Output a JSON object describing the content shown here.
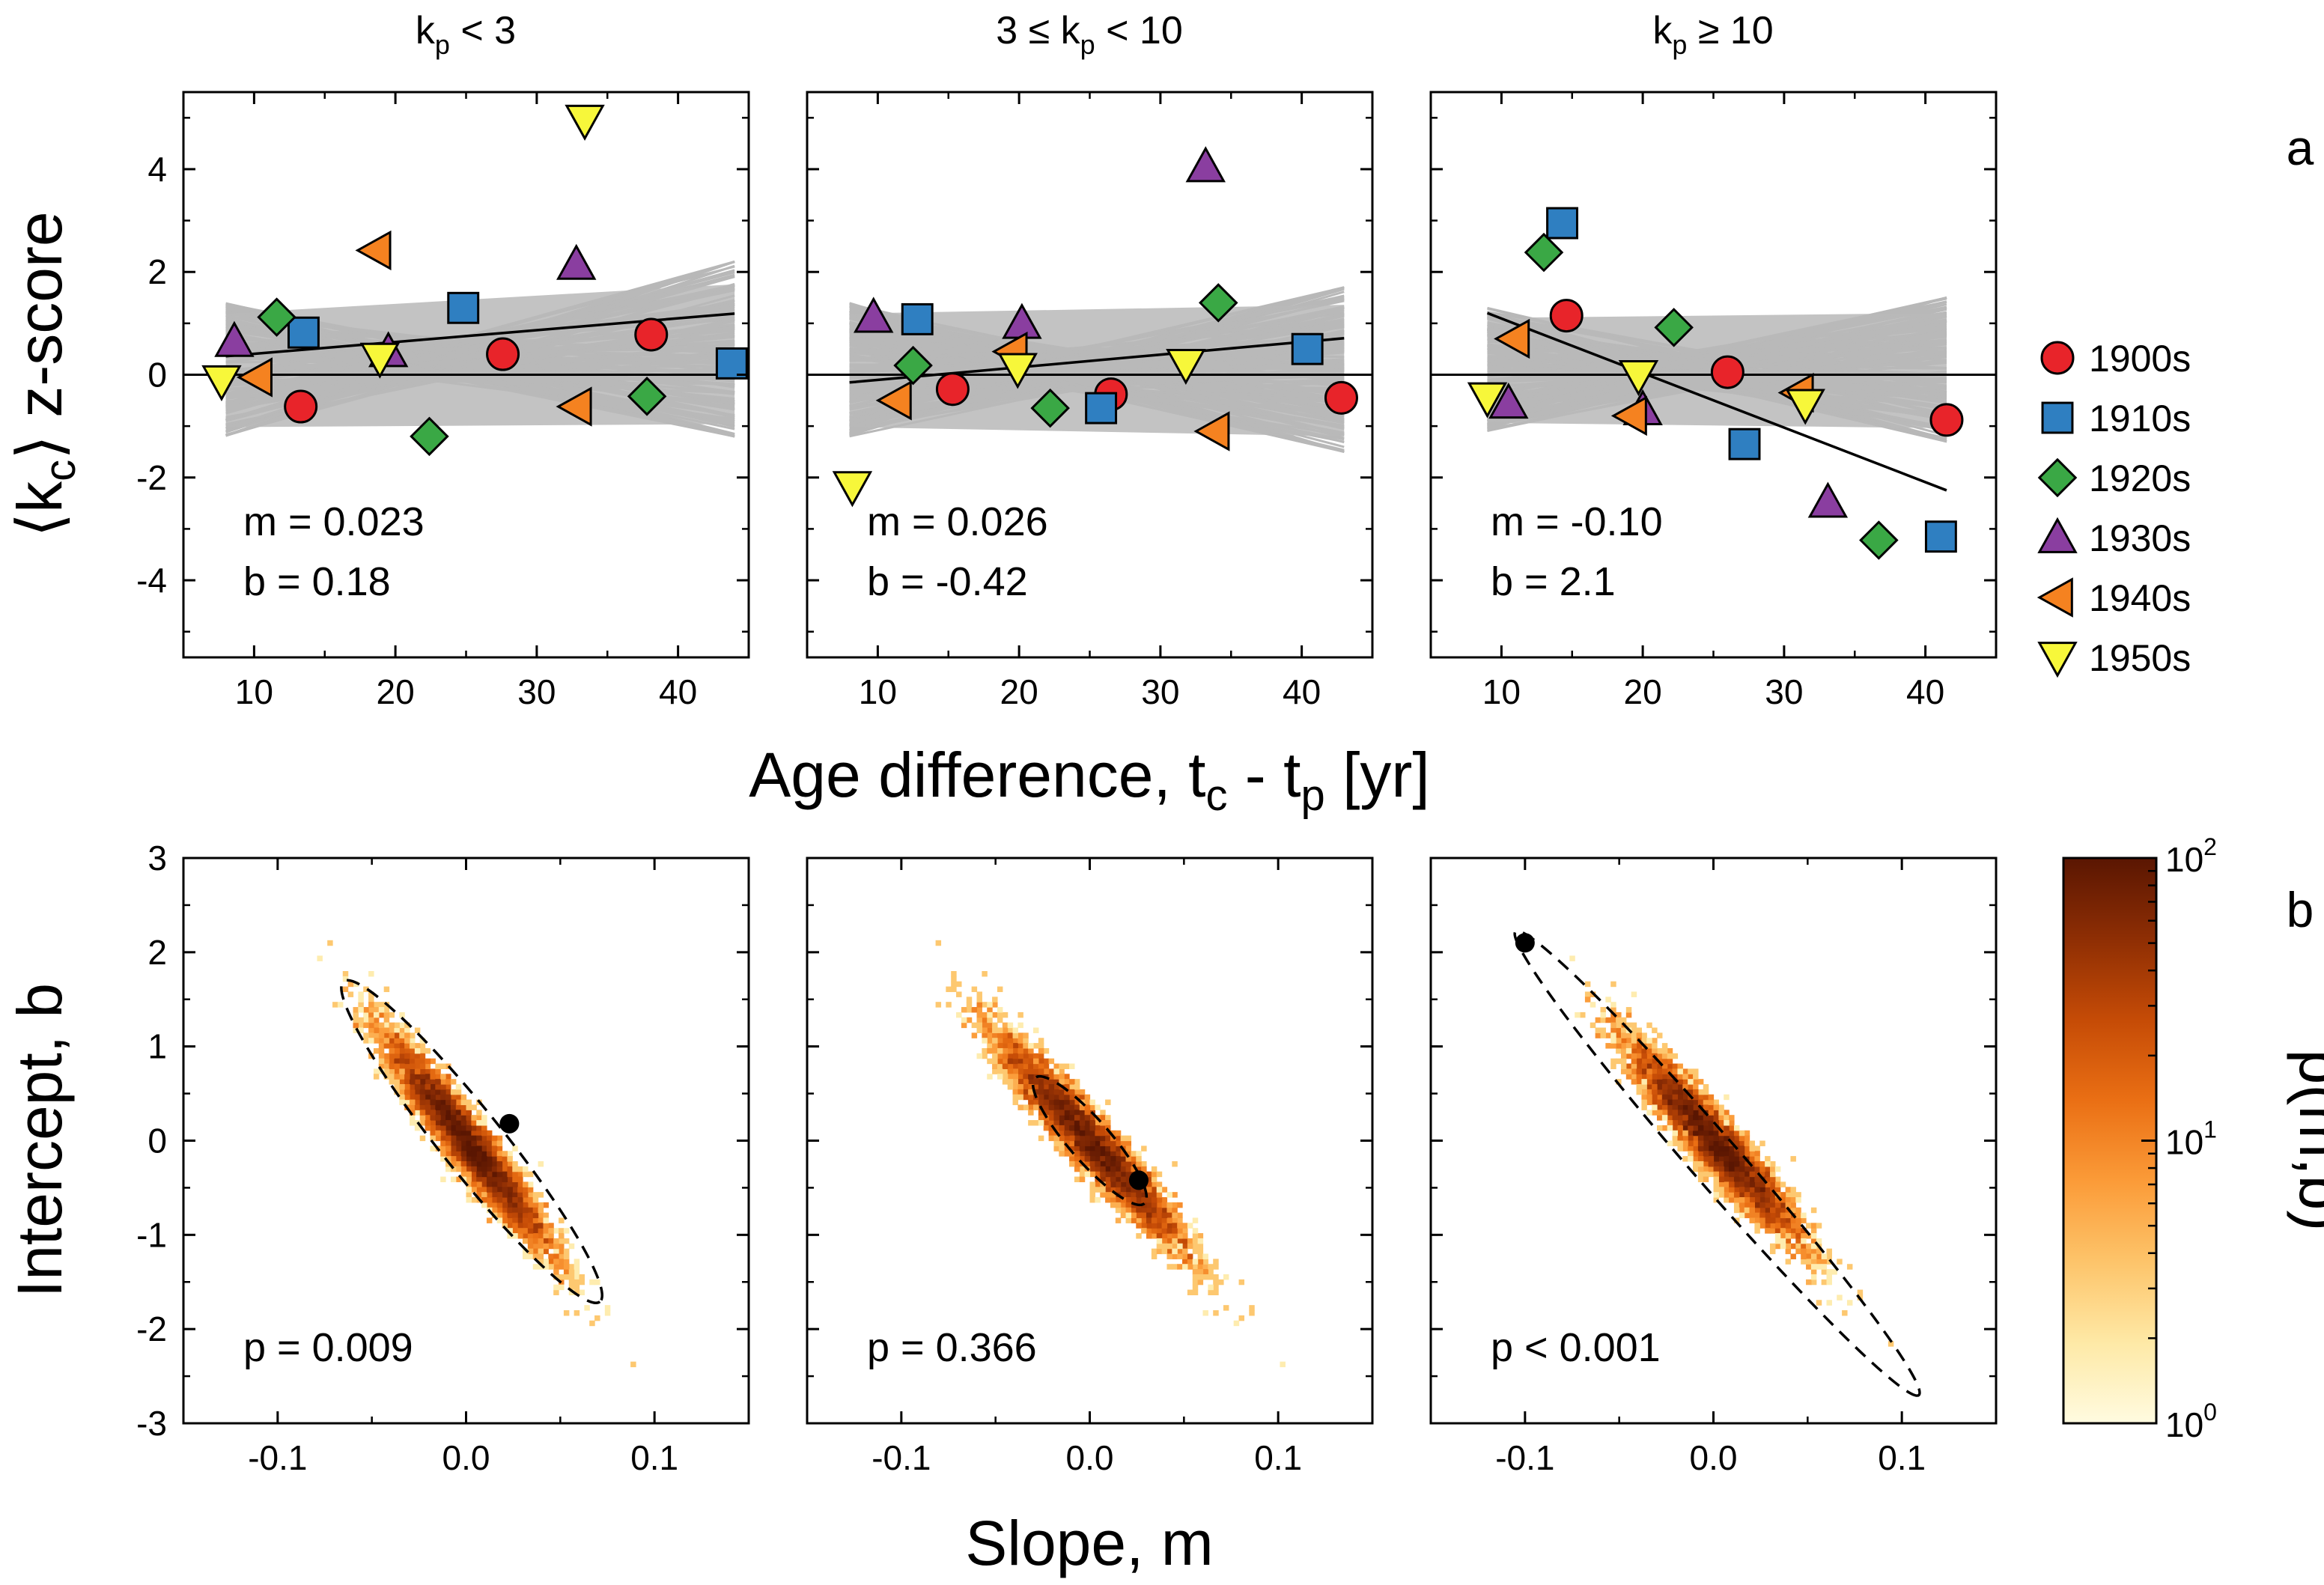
{
  "panel_letters": {
    "a": "a",
    "b": "b"
  },
  "axis_labels": {
    "top_y_main": "⟨k",
    "top_y_sub": "c",
    "top_y_tail": "⟩ z-score",
    "top_x_main": "Age difference, t",
    "top_x_sub1": "c",
    "top_x_mid": " - t",
    "top_x_sub2": "p",
    "top_x_tail": " [yr]",
    "bottom_y": "Intercept, b",
    "bottom_x": "Slope, m",
    "colorbar": "p(m,b)"
  },
  "colorbar": {
    "scale": "log",
    "range": [
      1,
      100
    ],
    "tick_labels": [
      {
        "base": "10",
        "exp": "0"
      },
      {
        "base": "10",
        "exp": "1"
      },
      {
        "base": "10",
        "exp": "2"
      }
    ],
    "colors": [
      "#fffbe0",
      "#fee9a6",
      "#fdc46a",
      "#fb9b38",
      "#ea6f14",
      "#c54b06",
      "#8e2e04",
      "#5a1602"
    ]
  },
  "legend": [
    {
      "label": "1900s",
      "marker": "circle",
      "color": "#e8242a"
    },
    {
      "label": "1910s",
      "marker": "square",
      "color": "#2f7fc1"
    },
    {
      "label": "1920s",
      "marker": "diamond",
      "color": "#3aa845"
    },
    {
      "label": "1930s",
      "marker": "triangle-up",
      "color": "#8a3ea0"
    },
    {
      "label": "1940s",
      "marker": "triangle-left",
      "color": "#f58220"
    },
    {
      "label": "1950s",
      "marker": "triangle-down",
      "color": "#f7f73a"
    }
  ],
  "chart_data": [
    {
      "type": "scatter",
      "panel": "a",
      "title": {
        "pre": "k",
        "sub": "p",
        "post": " < 3"
      },
      "xlim": [
        5,
        45
      ],
      "ylim": [
        -5.5,
        5.5
      ],
      "xticks": [
        10,
        20,
        30,
        40
      ],
      "yticks": [
        -4,
        -2,
        0,
        2,
        4
      ],
      "fit": {
        "x": [
          8,
          44
        ],
        "y": [
          0.36,
          1.19
        ]
      },
      "null_band": {
        "x": [
          8,
          44
        ],
        "upper": [
          1.4,
          2.2
        ],
        "lower": [
          -1.2,
          -1.2
        ]
      },
      "annotation": {
        "m_label": "m =  0.023",
        "b_label": "b  =  0.18"
      },
      "points": [
        {
          "decade": "1900s",
          "x": 13.3,
          "y": -0.62
        },
        {
          "decade": "1900s",
          "x": 27.6,
          "y": 0.4
        },
        {
          "decade": "1900s",
          "x": 38.1,
          "y": 0.78
        },
        {
          "decade": "1910s",
          "x": 13.5,
          "y": 0.82
        },
        {
          "decade": "1910s",
          "x": 24.8,
          "y": 1.3
        },
        {
          "decade": "1910s",
          "x": 43.8,
          "y": 0.22
        },
        {
          "decade": "1920s",
          "x": 11.6,
          "y": 1.12
        },
        {
          "decade": "1920s",
          "x": 22.4,
          "y": -1.2
        },
        {
          "decade": "1920s",
          "x": 37.8,
          "y": -0.42
        },
        {
          "decade": "1930s",
          "x": 8.6,
          "y": 0.65
        },
        {
          "decade": "1930s",
          "x": 19.5,
          "y": 0.45
        },
        {
          "decade": "1930s",
          "x": 32.8,
          "y": 2.15
        },
        {
          "decade": "1940s",
          "x": 10.2,
          "y": -0.05
        },
        {
          "decade": "1940s",
          "x": 18.6,
          "y": 2.42
        },
        {
          "decade": "1940s",
          "x": 32.8,
          "y": -0.62
        },
        {
          "decade": "1950s",
          "x": 7.7,
          "y": -0.12
        },
        {
          "decade": "1950s",
          "x": 18.9,
          "y": 0.32
        },
        {
          "decade": "1950s",
          "x": 33.4,
          "y": 4.95
        }
      ]
    },
    {
      "type": "scatter",
      "panel": "a",
      "title": {
        "pre": "3 ≤ k",
        "sub": "p",
        "post": " < 10"
      },
      "xlim": [
        5,
        45
      ],
      "ylim": [
        -5.5,
        5.5
      ],
      "xticks": [
        10,
        20,
        30,
        40
      ],
      "yticks": [
        -4,
        -2,
        0,
        2,
        4
      ],
      "fit": {
        "x": [
          8,
          43
        ],
        "y": [
          -0.15,
          0.71
        ]
      },
      "null_band": {
        "x": [
          8,
          43
        ],
        "upper": [
          1.4,
          1.7
        ],
        "lower": [
          -1.2,
          -1.5
        ]
      },
      "annotation": {
        "m_label": "m =  0.026",
        "b_label": "b  = -0.42"
      },
      "points": [
        {
          "decade": "1900s",
          "x": 15.3,
          "y": -0.28
        },
        {
          "decade": "1900s",
          "x": 26.5,
          "y": -0.38
        },
        {
          "decade": "1900s",
          "x": 42.8,
          "y": -0.45
        },
        {
          "decade": "1910s",
          "x": 12.8,
          "y": 1.08
        },
        {
          "decade": "1910s",
          "x": 25.8,
          "y": -0.65
        },
        {
          "decade": "1910s",
          "x": 40.4,
          "y": 0.5
        },
        {
          "decade": "1920s",
          "x": 12.5,
          "y": 0.18
        },
        {
          "decade": "1920s",
          "x": 22.2,
          "y": -0.65
        },
        {
          "decade": "1920s",
          "x": 34.1,
          "y": 1.4
        },
        {
          "decade": "1930s",
          "x": 9.7,
          "y": 1.12
        },
        {
          "decade": "1930s",
          "x": 20.2,
          "y": 1.0
        },
        {
          "decade": "1930s",
          "x": 33.2,
          "y": 4.05
        },
        {
          "decade": "1940s",
          "x": 11.3,
          "y": -0.5
        },
        {
          "decade": "1940s",
          "x": 19.5,
          "y": 0.45
        },
        {
          "decade": "1940s",
          "x": 33.8,
          "y": -1.1
        },
        {
          "decade": "1950s",
          "x": 8.2,
          "y": -2.18
        },
        {
          "decade": "1950s",
          "x": 19.9,
          "y": 0.12
        },
        {
          "decade": "1950s",
          "x": 31.8,
          "y": 0.2
        }
      ]
    },
    {
      "type": "scatter",
      "panel": "a",
      "title": {
        "pre": "k",
        "sub": "p",
        "post": " ≥ 10"
      },
      "xlim": [
        5,
        45
      ],
      "ylim": [
        -5.5,
        5.5
      ],
      "xticks": [
        10,
        20,
        30,
        40
      ],
      "yticks": [
        -4,
        -2,
        0,
        2,
        4
      ],
      "fit": {
        "x": [
          9,
          41.5
        ],
        "y": [
          1.2,
          -2.25
        ]
      },
      "null_band": {
        "x": [
          9,
          41.5
        ],
        "upper": [
          1.3,
          1.5
        ],
        "lower": [
          -1.1,
          -1.3
        ]
      },
      "annotation": {
        "m_label": "m = -0.10",
        "b_label": "b  =  2.1"
      },
      "points": [
        {
          "decade": "1900s",
          "x": 14.6,
          "y": 1.15
        },
        {
          "decade": "1900s",
          "x": 26.0,
          "y": 0.05
        },
        {
          "decade": "1900s",
          "x": 41.5,
          "y": -0.88
        },
        {
          "decade": "1910s",
          "x": 14.3,
          "y": 2.95
        },
        {
          "decade": "1910s",
          "x": 27.2,
          "y": -1.35
        },
        {
          "decade": "1910s",
          "x": 41.1,
          "y": -3.15
        },
        {
          "decade": "1920s",
          "x": 13.0,
          "y": 2.38
        },
        {
          "decade": "1920s",
          "x": 22.2,
          "y": 0.92
        },
        {
          "decade": "1920s",
          "x": 36.7,
          "y": -3.22
        },
        {
          "decade": "1930s",
          "x": 10.5,
          "y": -0.55
        },
        {
          "decade": "1930s",
          "x": 20.0,
          "y": -0.68
        },
        {
          "decade": "1930s",
          "x": 33.1,
          "y": -2.48
        },
        {
          "decade": "1940s",
          "x": 10.9,
          "y": 0.7
        },
        {
          "decade": "1940s",
          "x": 19.2,
          "y": -0.8
        },
        {
          "decade": "1940s",
          "x": 31.0,
          "y": -0.35
        },
        {
          "decade": "1950s",
          "x": 9.0,
          "y": -0.45
        },
        {
          "decade": "1950s",
          "x": 19.7,
          "y": -0.02
        },
        {
          "decade": "1950s",
          "x": 31.5,
          "y": -0.58
        }
      ]
    },
    {
      "type": "heatmap",
      "panel": "b",
      "xlim": [
        -0.15,
        0.15
      ],
      "ylim": [
        -3,
        3
      ],
      "xticks": [
        -0.1,
        0.0,
        0.1
      ],
      "yticks": [
        -3,
        -2,
        -1,
        0,
        1,
        2,
        3
      ],
      "observed": {
        "m": 0.023,
        "b": 0.18
      },
      "distribution": {
        "m_center": 0.0,
        "b_center": 0.0,
        "m_sd": 0.021,
        "corr": -0.93,
        "b_slope": -24.5
      },
      "ellipse": {
        "cx": 0.003,
        "cy": -0.01,
        "half_length_m": 0.068,
        "b_per_m": -25.0,
        "half_width_b": 0.33
      },
      "annotation": "p = 0.009"
    },
    {
      "type": "heatmap",
      "panel": "b",
      "xlim": [
        -0.15,
        0.15
      ],
      "ylim": [
        -3,
        3
      ],
      "xticks": [
        -0.1,
        0.0,
        0.1
      ],
      "yticks": [
        -3,
        -2,
        -1,
        0,
        1,
        2,
        3
      ],
      "observed": {
        "m": 0.026,
        "b": -0.42
      },
      "distribution": {
        "m_center": 0.0,
        "b_center": 0.0,
        "m_sd": 0.024,
        "corr": -0.95,
        "b_slope": -21.5
      },
      "ellipse": {
        "cx": 0.0,
        "cy": 0.0,
        "half_length_m": 0.029,
        "b_per_m": -23.0,
        "half_width_b": 0.22
      },
      "annotation": "p = 0.366"
    },
    {
      "type": "heatmap",
      "panel": "b",
      "xlim": [
        -0.15,
        0.15
      ],
      "ylim": [
        -3,
        3
      ],
      "xticks": [
        -0.1,
        0.0,
        0.1
      ],
      "yticks": [
        -3,
        -2,
        -1,
        0,
        1,
        2,
        3
      ],
      "observed": {
        "m": -0.1,
        "b": 2.1
      },
      "distribution": {
        "m_center": 0.0,
        "b_center": 0.0,
        "m_sd": 0.022,
        "corr": -0.95,
        "b_slope": -21.5
      },
      "ellipse": {
        "cx": 0.002,
        "cy": -0.24,
        "half_length_m": 0.107,
        "b_per_m": -23.0,
        "half_width_b": 0.26
      },
      "annotation": "p < 0.001"
    }
  ]
}
